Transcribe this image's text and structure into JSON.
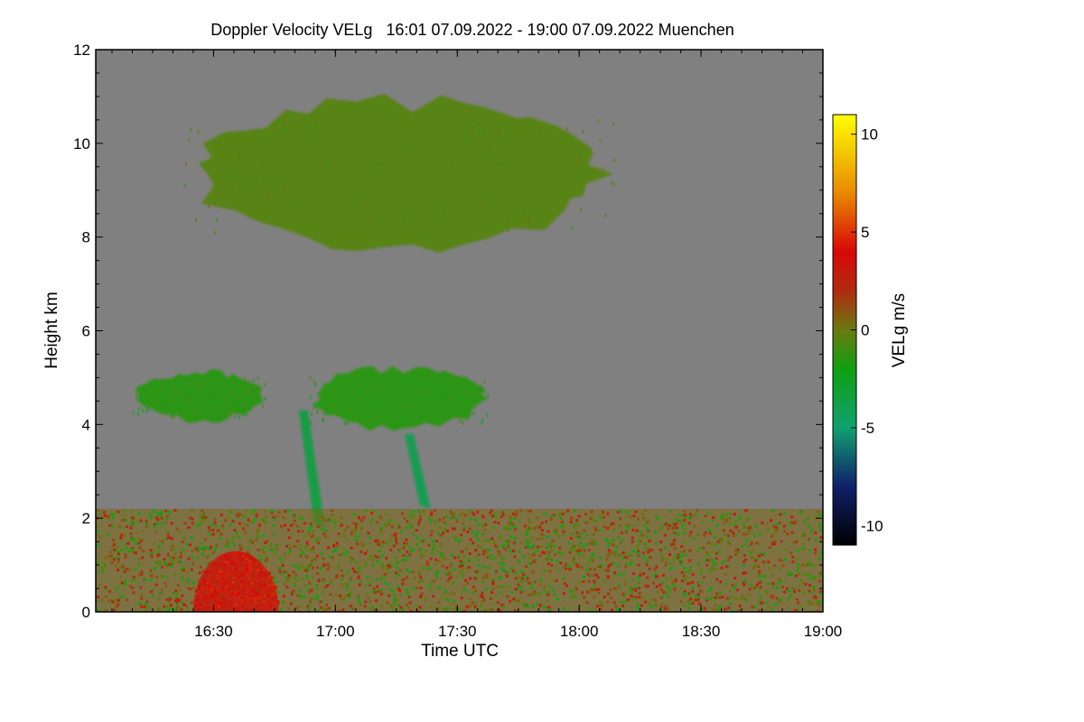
{
  "chart_data": {
    "type": "heatmap",
    "title": "Doppler Velocity VELg   16:01 07.09.2022 - 19:00 07.09.2022 Muenchen",
    "xlabel": "Time UTC",
    "ylabel": "Height km",
    "xlim": [
      "16:01",
      "19:00"
    ],
    "xlim_minutes": [
      0,
      179
    ],
    "xticks": [
      {
        "label": "16:30",
        "minute": 29
      },
      {
        "label": "17:00",
        "minute": 59
      },
      {
        "label": "17:30",
        "minute": 89
      },
      {
        "label": "18:00",
        "minute": 119
      },
      {
        "label": "18:30",
        "minute": 149
      },
      {
        "label": "19:00",
        "minute": 179
      }
    ],
    "ylim": [
      0,
      12
    ],
    "yticks": [
      {
        "label": "0",
        "value": 0
      },
      {
        "label": "2",
        "value": 2
      },
      {
        "label": "4",
        "value": 4
      },
      {
        "label": "6",
        "value": 6
      },
      {
        "label": "8",
        "value": 8
      },
      {
        "label": "10",
        "value": 10
      },
      {
        "label": "12",
        "value": 12
      }
    ],
    "background_color": "#808080",
    "colorbar": {
      "label": "VELg m/s",
      "range": [
        -11,
        11
      ],
      "ticks": [
        {
          "label": "10",
          "value": 10
        },
        {
          "label": "5",
          "value": 5
        },
        {
          "label": "0",
          "value": 0
        },
        {
          "label": "-5",
          "value": -5
        },
        {
          "label": "-10",
          "value": -10
        }
      ],
      "colors": [
        {
          "value": -11,
          "color": "#000000"
        },
        {
          "value": -8,
          "color": "#10206a"
        },
        {
          "value": -5,
          "color": "#10a070"
        },
        {
          "value": -2,
          "color": "#10a010"
        },
        {
          "value": 0,
          "color": "#6a7a10"
        },
        {
          "value": 2,
          "color": "#b02a10"
        },
        {
          "value": 4,
          "color": "#d80808"
        },
        {
          "value": 7,
          "color": "#e88a00"
        },
        {
          "value": 11,
          "color": "#ffff00"
        }
      ]
    },
    "features": [
      {
        "name": "cirrus-layer",
        "t_start": 21,
        "t_end": 128,
        "z_bottom": 7.6,
        "z_top": 11.1,
        "velocity": -0.5
      },
      {
        "name": "mid-level-cloud-west",
        "t_start": 9,
        "t_end": 42,
        "z_bottom": 4.0,
        "z_top": 5.2,
        "velocity": -1.5
      },
      {
        "name": "mid-level-cloud-east",
        "t_start": 52,
        "t_end": 97,
        "z_bottom": 3.8,
        "z_top": 5.3,
        "velocity": -1.5
      },
      {
        "name": "fall-streak-1",
        "t_start": 50,
        "t_end": 56,
        "z_bottom": 1.8,
        "z_top": 4.3,
        "velocity": -3.5
      },
      {
        "name": "fall-streak-2",
        "t_start": 76,
        "t_end": 82,
        "z_bottom": 2.2,
        "z_top": 3.8,
        "velocity": -4.0
      },
      {
        "name": "boundary-layer",
        "t_start": 0,
        "t_end": 179,
        "z_bottom": 0,
        "z_top": 2.2,
        "velocity": 0.5
      },
      {
        "name": "updraft-region",
        "t_start": 24,
        "t_end": 45,
        "z_bottom": 0,
        "z_top": 1.3,
        "velocity": 3.5
      }
    ]
  }
}
